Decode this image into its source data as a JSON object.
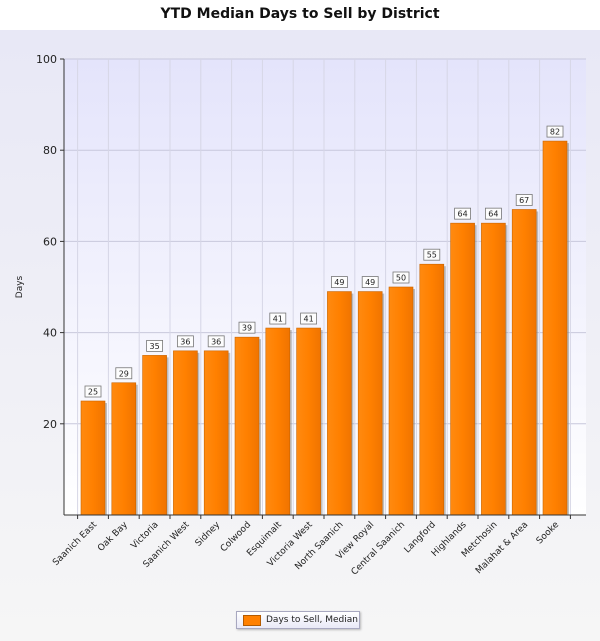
{
  "chart_data": {
    "type": "bar",
    "title": "YTD Median Days to Sell by District",
    "xlabel": "",
    "ylabel": "Days",
    "ylim": [
      0,
      100
    ],
    "yticks": [
      20,
      40,
      60,
      80,
      100
    ],
    "grid": true,
    "legend_position": "bottom-center",
    "categories": [
      "Saanich East",
      "Oak Bay",
      "Victoria",
      "Saanich West",
      "Sidney",
      "Colwood",
      "Esquimalt",
      "Victoria West",
      "North Saanich",
      "View Royal",
      "Central Saanich",
      "Langford",
      "Highlands",
      "Metchosin",
      "Malahat & Area",
      "Sooke"
    ],
    "series": [
      {
        "name": "Days to Sell, Median",
        "color": "#ff8000",
        "values": [
          25,
          29,
          35,
          36,
          36,
          39,
          41,
          41,
          49,
          49,
          50,
          55,
          64,
          64,
          67,
          82
        ]
      }
    ]
  }
}
